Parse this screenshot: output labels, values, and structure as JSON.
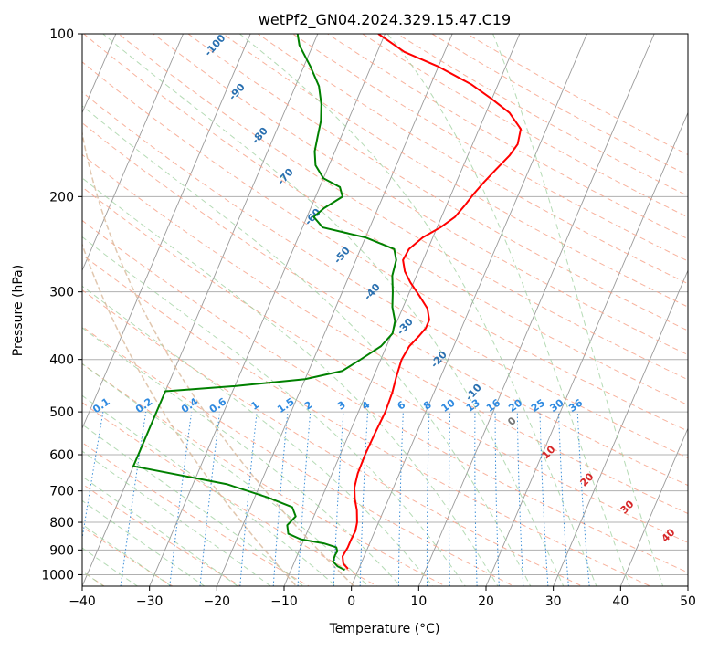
{
  "chart_data": {
    "type": "line",
    "title": "wetPf2_GN04.2024.329.15.47.C19",
    "xlabel": "Temperature (°C)",
    "ylabel": "Pressure (hPa)",
    "xlim": [
      -40,
      50
    ],
    "ylim": [
      1050,
      100
    ],
    "y_scale": "log",
    "x_ticks": [
      -40,
      -30,
      -20,
      -10,
      0,
      10,
      20,
      30,
      40,
      50
    ],
    "y_ticks": [
      1000,
      900,
      800,
      700,
      600,
      500,
      400,
      300,
      200,
      100
    ],
    "grid": true,
    "skew": 35,
    "series": [
      {
        "color": "#ff0000",
        "points": [
          [
            -1.6,
            975
          ],
          [
            -2.6,
            955
          ],
          [
            -3.2,
            925
          ],
          [
            -3.0,
            890
          ],
          [
            -3.0,
            860
          ],
          [
            -2.9,
            830
          ],
          [
            -3.2,
            800
          ],
          [
            -4.0,
            760
          ],
          [
            -5.0,
            725
          ],
          [
            -5.8,
            690
          ],
          [
            -6.2,
            650
          ],
          [
            -6.3,
            600
          ],
          [
            -6.2,
            550
          ],
          [
            -6.0,
            500
          ],
          [
            -6.2,
            460
          ],
          [
            -6.6,
            430
          ],
          [
            -6.9,
            400
          ],
          [
            -6.6,
            378
          ],
          [
            -5.8,
            362
          ],
          [
            -5.3,
            350
          ],
          [
            -5.3,
            338
          ],
          [
            -6.3,
            322
          ],
          [
            -8.3,
            305
          ],
          [
            -10.5,
            288
          ],
          [
            -12.0,
            275
          ],
          [
            -13.0,
            262
          ],
          [
            -12.8,
            250
          ],
          [
            -11.5,
            238
          ],
          [
            -9.5,
            228
          ],
          [
            -8.0,
            218
          ],
          [
            -7.3,
            208
          ],
          [
            -6.7,
            198
          ],
          [
            -5.9,
            188
          ],
          [
            -4.9,
            178
          ],
          [
            -3.8,
            168
          ],
          [
            -3.3,
            160
          ],
          [
            -3.8,
            150
          ],
          [
            -6.5,
            140
          ],
          [
            -10.0,
            132
          ],
          [
            -14.0,
            124
          ],
          [
            -20.0,
            115
          ],
          [
            -26.0,
            108
          ],
          [
            -31.0,
            100
          ]
        ]
      },
      {
        "color": "#008000",
        "points": [
          [
            -2.0,
            980
          ],
          [
            -3.3,
            965
          ],
          [
            -4.3,
            945
          ],
          [
            -4.4,
            920
          ],
          [
            -4.3,
            905
          ],
          [
            -4.7,
            890
          ],
          [
            -6.8,
            875
          ],
          [
            -10.5,
            860
          ],
          [
            -12.7,
            840
          ],
          [
            -13.4,
            810
          ],
          [
            -12.7,
            780
          ],
          [
            -13.8,
            750
          ],
          [
            -18.0,
            720
          ],
          [
            -25.0,
            680
          ],
          [
            -40.0,
            630
          ],
          [
            -40.0,
            458
          ],
          [
            -30.0,
            448
          ],
          [
            -20.0,
            435
          ],
          [
            -15.0,
            420
          ],
          [
            -13.0,
            400
          ],
          [
            -10.8,
            378
          ],
          [
            -9.9,
            358
          ],
          [
            -10.3,
            340
          ],
          [
            -11.6,
            320
          ],
          [
            -12.5,
            300
          ],
          [
            -13.6,
            280
          ],
          [
            -14.0,
            262
          ],
          [
            -15.0,
            250
          ],
          [
            -20.0,
            238
          ],
          [
            -27.0,
            228
          ],
          [
            -29.0,
            218
          ],
          [
            -28.0,
            210
          ],
          [
            -26.0,
            200
          ],
          [
            -27.0,
            192
          ],
          [
            -30.0,
            185
          ],
          [
            -32.0,
            175
          ],
          [
            -33.0,
            165
          ],
          [
            -33.5,
            155
          ],
          [
            -34.0,
            145
          ],
          [
            -35.0,
            135
          ],
          [
            -36.5,
            125
          ],
          [
            -39.0,
            115
          ],
          [
            -42.0,
            105
          ],
          [
            -43.0,
            100
          ]
        ]
      }
    ],
    "dry_adiabat_labels": [
      "-100",
      "-90",
      "-80",
      "-70",
      "-60",
      "-50",
      "-40",
      "-30",
      "-20",
      "-10"
    ],
    "mixing_ratio_labels": [
      "0.1",
      "0.2",
      "0.4",
      "0.6",
      "1",
      "1.5",
      "2",
      "3",
      "4",
      "6",
      "8",
      "10",
      "13",
      "16",
      "20",
      "25",
      "30",
      "36"
    ],
    "moist_adiabat_labels": [
      "0",
      "10",
      "20",
      "30",
      "40"
    ]
  }
}
